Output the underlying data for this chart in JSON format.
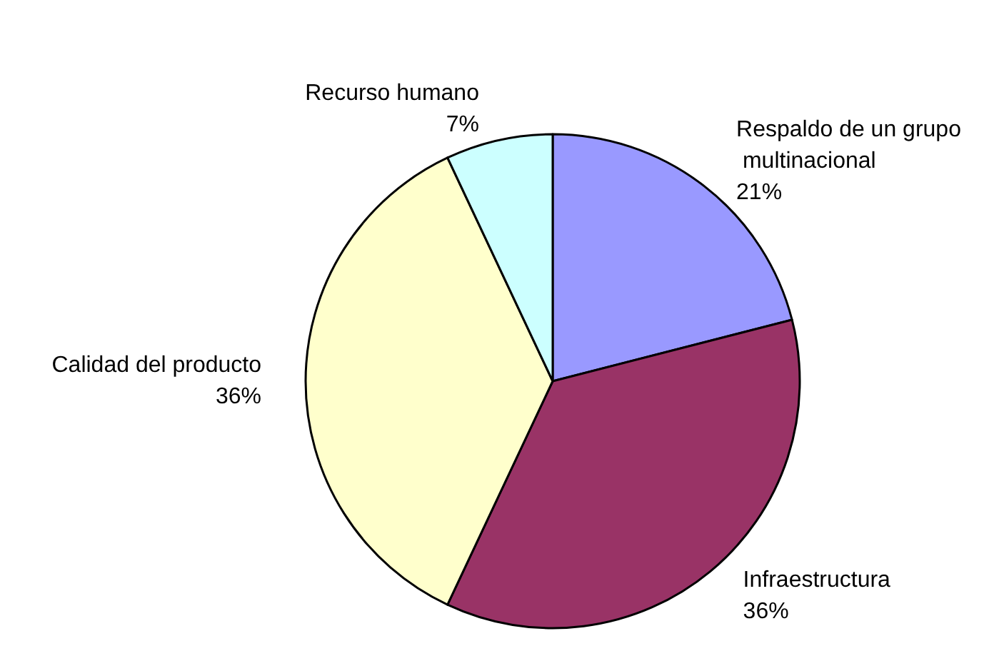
{
  "chart_data": {
    "type": "pie",
    "categories": [
      "Respaldo de un grupo multinacional",
      "Infraestructura",
      "Calidad del producto",
      "Recurso humano"
    ],
    "values": [
      21,
      36,
      36,
      7
    ],
    "colors": [
      "#9999ff",
      "#993366",
      "#ffffcc",
      "#ccffff"
    ],
    "value_labels": [
      "21%",
      "36%",
      "36%",
      "7%"
    ],
    "legend": false
  }
}
